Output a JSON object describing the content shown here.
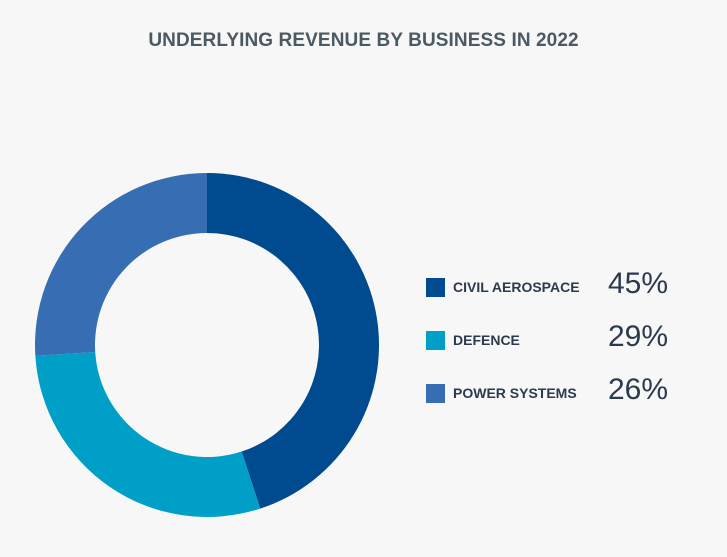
{
  "chart_data": {
    "type": "pie",
    "variant": "donut",
    "title": "UNDERLYING REVENUE BY BUSINESS IN 2022",
    "start": "12 o'clock",
    "direction": "clockwise",
    "legend_position": "right",
    "slices": [
      {
        "label": "CIVIL AEROSPACE",
        "value": 45,
        "display": "45%",
        "color": "#004a8f"
      },
      {
        "label": "DEFENCE",
        "value": 29,
        "display": "29%",
        "color": "#009fc7"
      },
      {
        "label": "POWER SYSTEMS",
        "value": 26,
        "display": "26%",
        "color": "#376db3"
      }
    ]
  }
}
